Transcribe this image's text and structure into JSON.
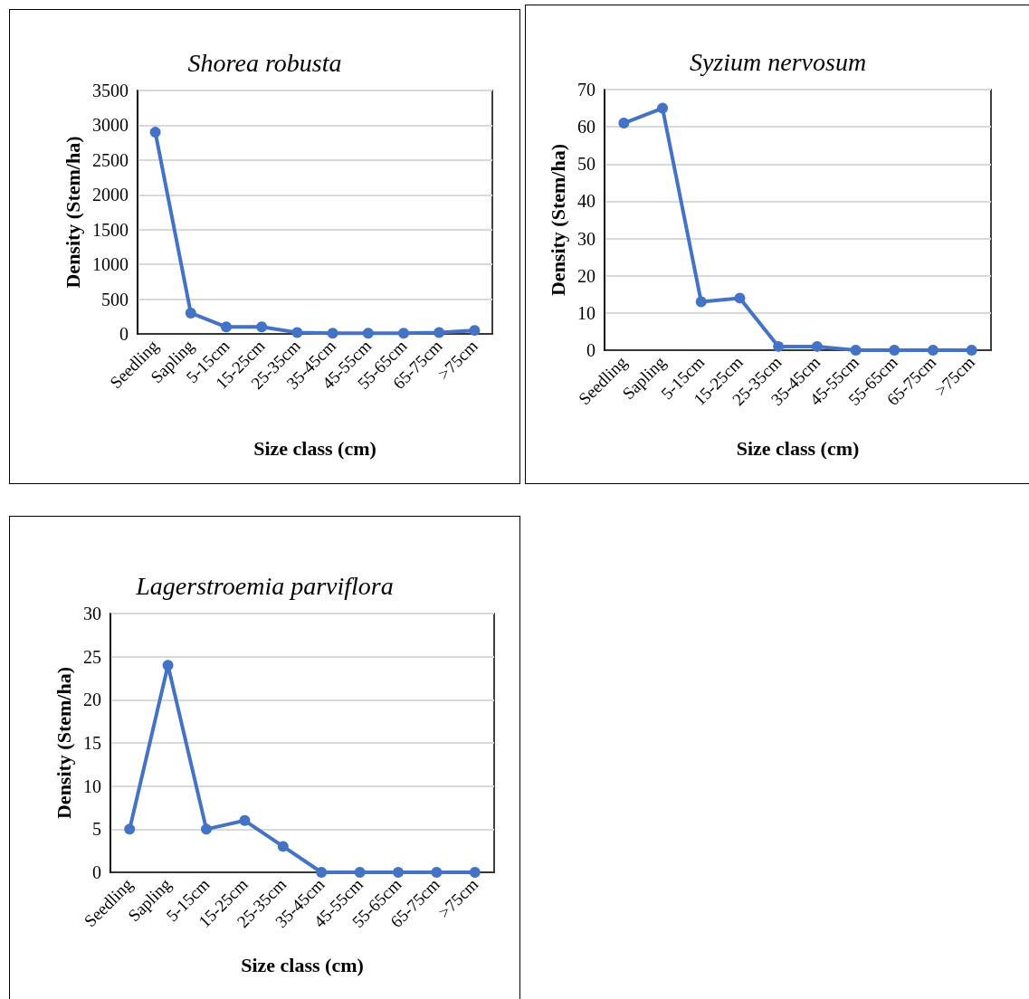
{
  "chart_data": [
    {
      "type": "line",
      "title": "Shorea robusta",
      "xlabel": "Size class (cm)",
      "ylabel": "Density (Stem/ha)",
      "categories": [
        "Seedling",
        "Sapling",
        "5-15cm",
        "15-25cm",
        "25-35cm",
        "35-45cm",
        "45-55cm",
        "55-65cm",
        "65-75cm",
        ">75cm"
      ],
      "series": [
        {
          "color": "#4472c4",
          "values": [
            2900,
            300,
            100,
            100,
            20,
            10,
            10,
            10,
            20,
            50
          ]
        }
      ],
      "ylim": [
        0,
        3500
      ],
      "yticks": [
        0,
        500,
        1000,
        1500,
        2000,
        2500,
        3000,
        3500
      ],
      "grid": "y",
      "marker": "circle",
      "line_style": "solid"
    },
    {
      "type": "line",
      "title": "Syzium nervosum",
      "xlabel": "Size class (cm)",
      "ylabel": "Density (Stem/ha)",
      "categories": [
        "Seedling",
        "Sapling",
        "5-15cm",
        "15-25cm",
        "25-35cm",
        "35-45cm",
        "45-55cm",
        "55-65cm",
        "65-75cm",
        ">75cm"
      ],
      "series": [
        {
          "color": "#4472c4",
          "values": [
            61,
            65,
            13,
            14,
            1,
            1,
            0,
            0,
            0,
            0
          ]
        }
      ],
      "ylim": [
        0,
        70
      ],
      "yticks": [
        0,
        10,
        20,
        30,
        40,
        50,
        60,
        70
      ],
      "grid": "y",
      "marker": "circle",
      "line_style": "solid"
    },
    {
      "type": "line",
      "title": "Lagerstroemia parviflora",
      "xlabel": "Size class (cm)",
      "ylabel": "Density (Stem/ha)",
      "categories": [
        "Seedling",
        "Sapling",
        "5-15cm",
        "15-25cm",
        "25-35cm",
        "35-45cm",
        "45-55cm",
        "55-65cm",
        "65-75cm",
        ">75cm"
      ],
      "series": [
        {
          "color": "#4472c4",
          "values": [
            5,
            24,
            5,
            6,
            3,
            0,
            0,
            0,
            0,
            0
          ]
        }
      ],
      "ylim": [
        0,
        30
      ],
      "yticks": [
        0,
        5,
        10,
        15,
        20,
        25,
        30
      ],
      "grid": "y",
      "marker": "circle",
      "line_style": "solid"
    }
  ]
}
